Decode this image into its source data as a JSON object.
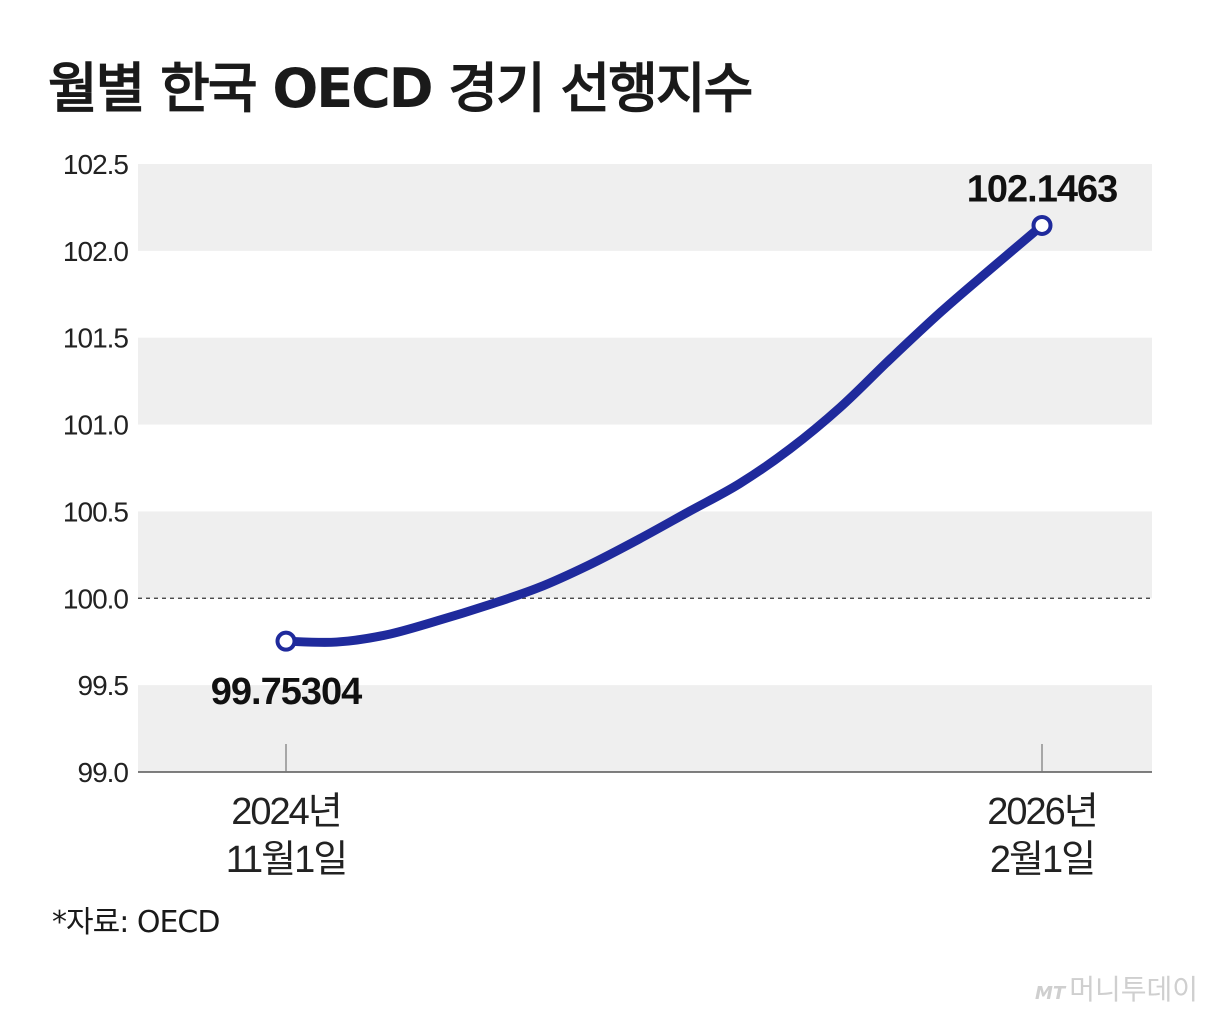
{
  "title": "월별 한국 OECD 경기 선행지수",
  "source": "*자료: OECD",
  "watermark": "머니투데이",
  "watermark_prefix": "MT",
  "chart_data": {
    "type": "line",
    "ylim": [
      99.0,
      102.5
    ],
    "yticks": [
      "102.5",
      "102.0",
      "101.5",
      "101.0",
      "100.5",
      "100.0",
      "99.5",
      "99.0"
    ],
    "reference_line": 100.0,
    "x_ticks": [
      {
        "line1": "2024년",
        "line2": "11월1일"
      },
      {
        "line1": "2026년",
        "line2": "2월1일"
      }
    ],
    "series": [
      {
        "color": "#1f2a9c",
        "x": [
          0,
          1,
          2,
          3,
          4,
          5,
          6,
          7,
          8,
          9,
          10,
          11,
          12,
          13,
          14,
          15
        ],
        "values": [
          99.75304,
          99.748,
          99.79,
          99.87,
          99.96,
          100.06,
          100.19,
          100.34,
          100.5,
          100.66,
          100.86,
          101.1,
          101.38,
          101.65,
          101.9,
          102.1463
        ]
      }
    ],
    "end_labels": [
      "99.75304",
      "102.1463"
    ],
    "grid": "alternating horizontal bands"
  }
}
